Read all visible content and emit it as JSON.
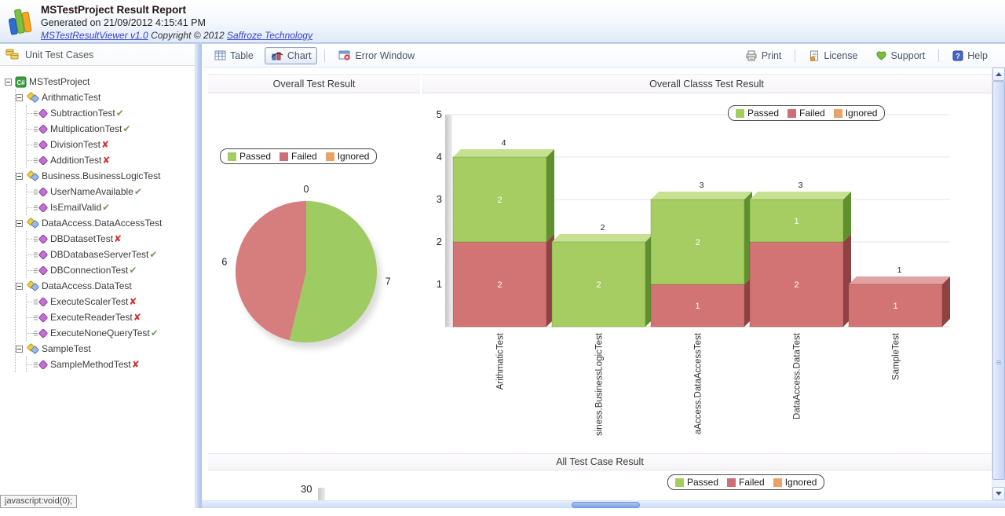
{
  "header": {
    "title": "MSTestProject Result Report",
    "generated": "Generated on 21/09/2012 4:15:41 PM",
    "viewer_link": "MSTestResultViewer v1.0",
    "copyright": "Copyright © 2012",
    "company_link": "Saffroze Technology"
  },
  "sidebar": {
    "title": "Unit Test Cases",
    "tree": {
      "root": "MSTestProject",
      "classes": [
        {
          "name": "ArithmaticTest",
          "tests": [
            {
              "name": "SubtractionTest",
              "result": "passed"
            },
            {
              "name": "MultiplicationTest",
              "result": "passed"
            },
            {
              "name": "DivisionTest",
              "result": "failed"
            },
            {
              "name": "AdditionTest",
              "result": "failed"
            }
          ]
        },
        {
          "name": "Business.BusinessLogicTest",
          "tests": [
            {
              "name": "UserNameAvailable",
              "result": "passed"
            },
            {
              "name": "IsEmailValid",
              "result": "passed"
            }
          ]
        },
        {
          "name": "DataAccess.DataAccessTest",
          "tests": [
            {
              "name": "DBDatasetTest",
              "result": "failed"
            },
            {
              "name": "DBDatabaseServerTest",
              "result": "passed"
            },
            {
              "name": "DBConnectionTest",
              "result": "passed"
            }
          ]
        },
        {
          "name": "DataAccess.DataTest",
          "tests": [
            {
              "name": "ExecuteScalerTest",
              "result": "failed"
            },
            {
              "name": "ExecuteReaderTest",
              "result": "failed"
            },
            {
              "name": "ExecuteNoneQueryTest",
              "result": "passed"
            }
          ]
        },
        {
          "name": "SampleTest",
          "tests": [
            {
              "name": "SampleMethodTest",
              "result": "failed"
            }
          ]
        }
      ]
    }
  },
  "toolbar": {
    "table_label": "Table",
    "chart_label": "Chart",
    "error_window_label": "Error Window",
    "print_label": "Print",
    "license_label": "License",
    "support_label": "Support",
    "help_label": "Help"
  },
  "legend": {
    "items": [
      {
        "label": "Passed",
        "color": "#a3cd5f"
      },
      {
        "label": "Failed",
        "color": "#cd6f75"
      },
      {
        "label": "Ignored",
        "color": "#e9a366"
      }
    ]
  },
  "icons": {
    "passed_glyph": "✔",
    "passed_color": "#6f9f56",
    "failed_glyph": "✘",
    "failed_color": "#d42f2f"
  },
  "status_bar": "javascript:void(0);",
  "chart_data": [
    {
      "type": "pie",
      "title": "Overall Test Result",
      "labels": [
        "Passed",
        "Failed",
        "Ignored"
      ],
      "values": [
        7,
        6,
        0
      ],
      "colors": [
        "#9ecb62",
        "#d67e7e",
        "#e9a366"
      ],
      "legend_position": "top"
    },
    {
      "type": "bar",
      "title": "Overall Classs Test Result",
      "stacked": true,
      "categories": [
        "ArithmaticTest",
        "Business.BusinessLogicTest",
        "DataAccess.DataAccessTest",
        "DataAccess.DataTest",
        "SampleTest"
      ],
      "category_labels_displayed": [
        "ArithmaticTest",
        "siness.BusinessLogicTest",
        "aAccess.DataAccessTest",
        "DataAccess.DataTest",
        "SampleTest"
      ],
      "series": [
        {
          "name": "Failed",
          "values": [
            2,
            0,
            1,
            2,
            1
          ],
          "color": "#d37474",
          "dark": "#8e4242",
          "light": "#e2a2a2"
        },
        {
          "name": "Passed",
          "values": [
            2,
            2,
            2,
            1,
            0
          ],
          "color": "#a5cd61",
          "dark": "#5f8f2f",
          "light": "#c6e192"
        },
        {
          "name": "Ignored",
          "values": [
            0,
            0,
            0,
            0,
            0
          ],
          "color": "#e9a366",
          "dark": "#a86a34",
          "light": "#f2c697"
        }
      ],
      "totals": [
        4,
        2,
        3,
        3,
        1
      ],
      "ylim": [
        0,
        5
      ],
      "yticks": [
        1,
        2,
        3,
        4,
        5
      ],
      "grid": true,
      "legend_position": "top-right"
    },
    {
      "type": "bar",
      "title": "All Test Case Result",
      "visible": "partial",
      "visible_ytick": "30",
      "legend_position": "top-right"
    }
  ]
}
